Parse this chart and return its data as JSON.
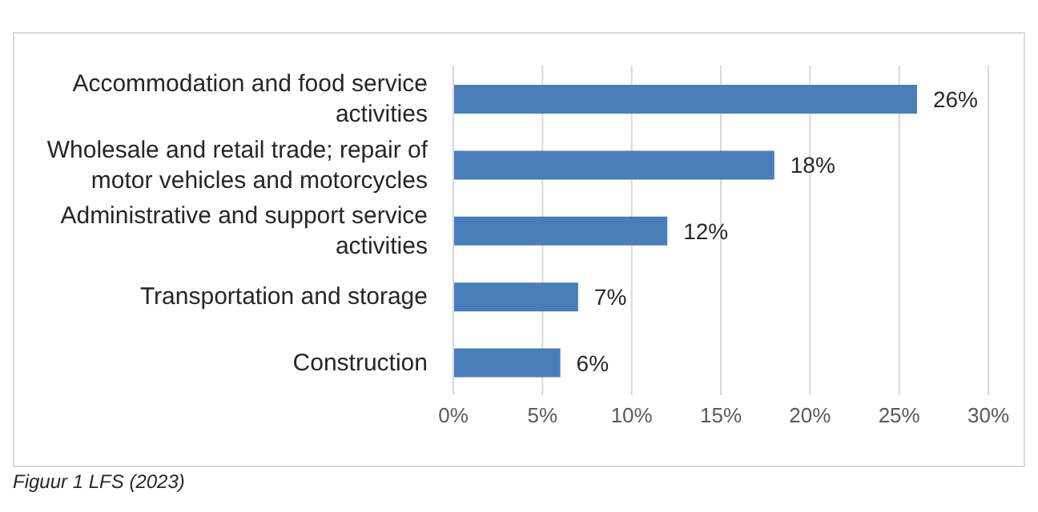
{
  "chart_data": {
    "type": "bar",
    "orientation": "horizontal",
    "categories": [
      "Accommodation and food service activities",
      "Wholesale and retail trade; repair of motor vehicles and motorcycles",
      "Administrative and support service activities",
      "Transportation and storage",
      "Construction"
    ],
    "values": [
      26,
      18,
      12,
      7,
      6
    ],
    "value_labels": [
      "26%",
      "18%",
      "12%",
      "7%",
      "6%"
    ],
    "color": "#4a7ebb",
    "xlim": [
      0,
      30
    ],
    "xticks": [
      {
        "value": 0,
        "label": "0%"
      },
      {
        "value": 5,
        "label": "5%"
      },
      {
        "value": 10,
        "label": "10%"
      },
      {
        "value": 15,
        "label": "15%"
      },
      {
        "value": 20,
        "label": "20%"
      },
      {
        "value": 25,
        "label": "25%"
      },
      {
        "value": 30,
        "label": "30%"
      }
    ],
    "grid": "x",
    "annotations": [
      "Figuur 1 LFS (2023)"
    ]
  }
}
